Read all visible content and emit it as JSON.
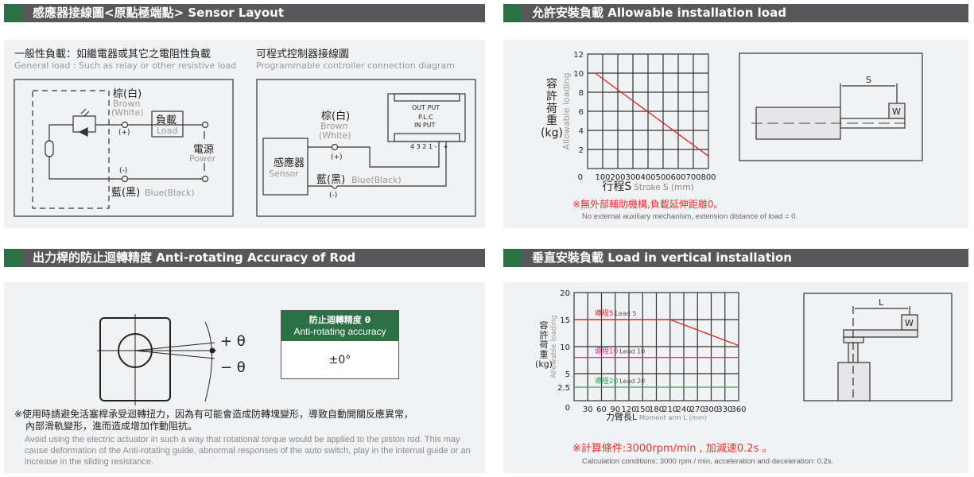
{
  "sections": {
    "sensor_layout": "感應器接線圖<原點極端點>  Sensor Layout",
    "allowable_load": "允許安裝負載  Allowable installation load",
    "anti_rotating": "出力桿的防止迴轉精度 Anti-rotating Accuracy of Rod",
    "vertical_load": "垂直安裝負載  Load in vertical installation"
  },
  "general_load": {
    "title_zh": "一般性負載：如繼電器或其它之電阻性負載",
    "title_en": "General load : Such as relay or other resistive load",
    "brown_zh": "棕(白)",
    "brown_en": "Brown",
    "white_en": "(White)",
    "plus": "(+)",
    "minus": "(-)",
    "load_zh": "負載",
    "load_en": "Load",
    "power_zh": "電源",
    "power_en": "Power",
    "blue_zh": "藍(黑)",
    "blue_en": "Blue(Black)"
  },
  "plc": {
    "title_zh": "可程式控制器接線圖",
    "title_en": "Programmable controller connection diagram",
    "sensor_zh": "感應器",
    "sensor_en": "Sensor",
    "brown_zh": "棕(白)",
    "brown_en": "Brown",
    "white_en": "(White)",
    "plus": "(+)",
    "minus": "(-)",
    "blue_zh": "藍(黑)",
    "blue_en": "Blue(Black)",
    "output": "OUT PUT",
    "plc": "P.L.C",
    "input": "IN PUT",
    "terminals": "4 3 2 1 -   +"
  },
  "rod": {
    "plus_theta": "+ θ",
    "minus_theta": "− θ",
    "table_title_zh": "防止迴轉精度 θ",
    "table_title_en": "Anti-rotating accuracy",
    "table_value": "±0°",
    "note_zh_1": "※使用時請避免活塞桿承受迴轉扭力，因為有可能會造成防轉塊變形，導致自動開關反應異常，",
    "note_zh_2": "內部滑軌變形，進而造成增加作動阻抗。",
    "note_en": "Avoid using the electric actuator in such a way that rotational torque would be applied to the piston rod. This may cause deformation of the Anti-rotating guide, abnormal responses of the auto switch, play in the internal guide or an increase in the sliding resistance."
  },
  "horiz_diagram": {
    "s": "S",
    "w": "W"
  },
  "vert_diagram": {
    "l": "L",
    "w": "W"
  },
  "note_horizontal": {
    "zh": "※無外部輔助機構,負載延伸距離0。",
    "en": "No external auxiliary mechanism, extension distance of load = 0."
  },
  "note_vertical": {
    "zh": "※計算條件:3000rpm/min , 加減速0.2s 。",
    "en": "Calculation conditions: 3000 rpm / min, acceleration and deceleration: 0.2s."
  },
  "colors": {
    "header_bg": "#58585a",
    "accent_green": "#2b7145",
    "panel_bg": "#f1f2f4",
    "note_red": "#e83030"
  },
  "chart_data": [
    {
      "type": "line",
      "ylabel_zh": "容許荷重(kg)",
      "ylabel_en": "Allowable loading",
      "xlabel_zh": "行程S",
      "xlabel_en": "Stroke S (mm)",
      "xlim": [
        0,
        800
      ],
      "ylim": [
        0,
        12
      ],
      "xticks": [
        0,
        100,
        200,
        300,
        400,
        500,
        600,
        700,
        800
      ],
      "yticks": [
        2,
        4,
        6,
        8,
        10,
        12
      ],
      "grid": true,
      "series": [
        {
          "color": "#e02020",
          "x": [
            50,
            800
          ],
          "y": [
            10,
            1.3
          ]
        }
      ]
    },
    {
      "type": "line",
      "ylabel_zh": "容許荷重(kg)",
      "ylabel_en": "Allowable loading",
      "xlabel_zh": "力臂長L",
      "xlabel_en": "Moment arm L (mm)",
      "xlim": [
        0,
        360
      ],
      "ylim": [
        0,
        20
      ],
      "xticks": [
        30,
        60,
        90,
        120,
        150,
        180,
        210,
        240,
        270,
        300,
        330,
        360
      ],
      "yticks": [
        0,
        2.5,
        5,
        10,
        15,
        20
      ],
      "grid": true,
      "series": [
        {
          "name": "導程5 Lead 5",
          "name_zh": "導程5",
          "name_en": "Lead 5",
          "color": "#e02828",
          "x": [
            0,
            210,
            360
          ],
          "y": [
            15,
            15,
            10.2
          ]
        },
        {
          "name": "導程10 Lead 10",
          "name_zh": "導程10",
          "name_en": "Lead 10",
          "color": "#e82c8c",
          "x": [
            0,
            360
          ],
          "y": [
            8,
            8
          ]
        },
        {
          "name": "導程20 Lead 20",
          "name_zh": "導程20",
          "name_en": "Lead 20",
          "color": "#2aa85a",
          "x": [
            0,
            360
          ],
          "y": [
            2.5,
            2.5
          ]
        }
      ]
    }
  ]
}
